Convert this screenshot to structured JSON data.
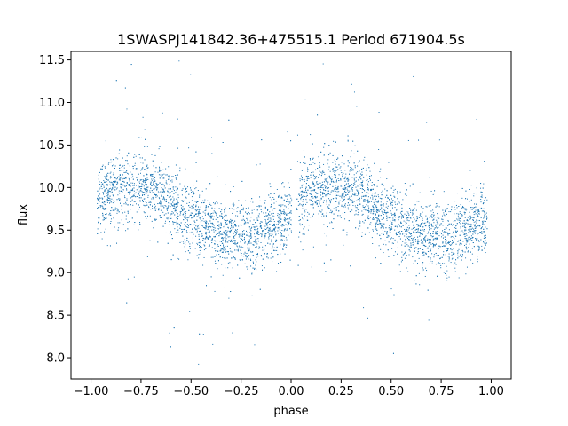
{
  "chart_data": {
    "type": "scatter",
    "title": "1SWASPJ141842.36+475515.1 Period 671904.5s",
    "xlabel": "phase",
    "ylabel": "flux",
    "xlim": [
      -1.1,
      1.1
    ],
    "ylim": [
      7.75,
      11.6
    ],
    "xticks": [
      -1.0,
      -0.75,
      -0.5,
      -0.25,
      0.0,
      0.25,
      0.5,
      0.75,
      1.0
    ],
    "xtick_labels": [
      "−1.00",
      "−0.75",
      "−0.50",
      "−0.25",
      "0.00",
      "0.25",
      "0.50",
      "0.75",
      "1.00"
    ],
    "yticks": [
      8.0,
      8.5,
      9.0,
      9.5,
      10.0,
      10.5,
      11.0,
      11.5
    ],
    "ytick_labels": [
      "8.0",
      "8.5",
      "9.0",
      "9.5",
      "10.0",
      "10.5",
      "11.0",
      "11.5"
    ],
    "grid": false,
    "marker_color": "#1f77b4",
    "series": [
      {
        "phase": [
          -0.95,
          -0.9,
          -0.85,
          -0.8,
          -0.75,
          -0.7,
          -0.65,
          -0.6,
          -0.55,
          -0.5,
          -0.45,
          -0.4,
          -0.35,
          -0.3,
          -0.25,
          -0.2,
          -0.15,
          -0.1,
          -0.05,
          0.05,
          0.1,
          0.15,
          0.2,
          0.25,
          0.3,
          0.35,
          0.4,
          0.45,
          0.5,
          0.55,
          0.6,
          0.65,
          0.7,
          0.75,
          0.8,
          0.85,
          0.9,
          0.95
        ],
        "flux": [
          9.85,
          9.95,
          10.0,
          9.95,
          10.0,
          10.05,
          9.95,
          9.8,
          9.7,
          9.65,
          9.55,
          9.5,
          9.45,
          9.45,
          9.45,
          9.4,
          9.45,
          9.55,
          9.6,
          9.85,
          9.95,
          10.0,
          10.0,
          10.0,
          10.05,
          9.95,
          9.8,
          9.7,
          9.65,
          9.55,
          9.5,
          9.45,
          9.45,
          9.45,
          9.4,
          9.45,
          9.55,
          9.6
        ]
      }
    ]
  }
}
